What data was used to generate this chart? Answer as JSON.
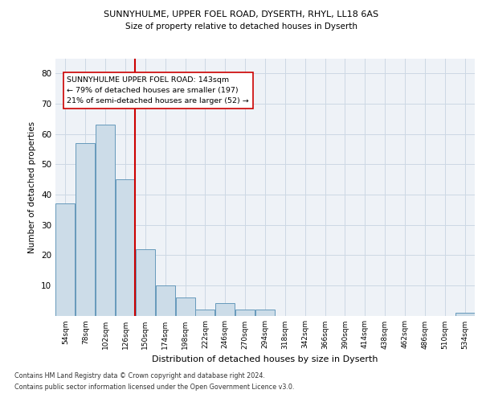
{
  "title1": "SUNNYHULME, UPPER FOEL ROAD, DYSERTH, RHYL, LL18 6AS",
  "title2": "Size of property relative to detached houses in Dyserth",
  "xlabel": "Distribution of detached houses by size in Dyserth",
  "ylabel": "Number of detached properties",
  "categories": [
    "54sqm",
    "78sqm",
    "102sqm",
    "126sqm",
    "150sqm",
    "174sqm",
    "198sqm",
    "222sqm",
    "246sqm",
    "270sqm",
    "294sqm",
    "318sqm",
    "342sqm",
    "366sqm",
    "390sqm",
    "414sqm",
    "438sqm",
    "462sqm",
    "486sqm",
    "510sqm",
    "534sqm"
  ],
  "values": [
    37,
    57,
    63,
    45,
    22,
    10,
    6,
    2,
    4,
    2,
    2,
    0,
    0,
    0,
    0,
    0,
    0,
    0,
    0,
    0,
    1
  ],
  "bar_color": "#ccdce8",
  "bar_edge_color": "#6699bb",
  "vline_x": 3.5,
  "vline_color": "#cc0000",
  "annotation_title": "SUNNYHULME UPPER FOEL ROAD: 143sqm",
  "annotation_line1": "← 79% of detached houses are smaller (197)",
  "annotation_line2": "21% of semi-detached houses are larger (52) →",
  "annotation_box_color": "#ffffff",
  "annotation_box_edge": "#cc0000",
  "ylim": [
    0,
    85
  ],
  "yticks": [
    0,
    10,
    20,
    30,
    40,
    50,
    60,
    70,
    80
  ],
  "footnote1": "Contains HM Land Registry data © Crown copyright and database right 2024.",
  "footnote2": "Contains public sector information licensed under the Open Government Licence v3.0.",
  "grid_color": "#ccd8e4",
  "background_color": "#eef2f7"
}
